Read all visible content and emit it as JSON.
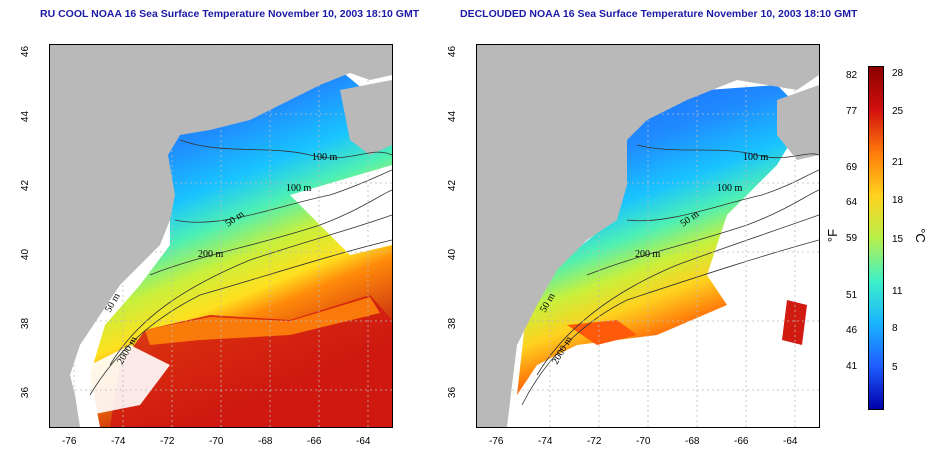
{
  "left_map": {
    "title": "RU COOL NOAA 16 Sea Surface Temperature November 10, 2003 18:10 GMT"
  },
  "right_map": {
    "title": "DECLOUDED NOAA 16 Sea Surface Temperature November 10, 2003 18:10 GMT"
  },
  "axes": {
    "lat_ticks": [
      "46",
      "44",
      "42",
      "40",
      "38",
      "36"
    ],
    "lon_ticks": [
      "-76",
      "-74",
      "-72",
      "-70",
      "-68",
      "-66",
      "-64"
    ]
  },
  "isobaths": [
    "100 m",
    "100 m",
    "50 m",
    "200 m",
    "50 m",
    "2000 m"
  ],
  "colorbar": {
    "fahrenheit_label": "°F",
    "celsius_label": "°C",
    "fahrenheit_ticks": [
      "82",
      "77",
      "69",
      "64",
      "59",
      "51",
      "46",
      "41"
    ],
    "celsius_ticks": [
      "28",
      "25",
      "21",
      "18",
      "15",
      "11",
      "8",
      "5"
    ],
    "colors": [
      "#0000a8",
      "#1f5cff",
      "#19b4ff",
      "#3ff0c8",
      "#b9f04a",
      "#ffd21f",
      "#ff7a0a",
      "#d21010",
      "#8b0000"
    ]
  },
  "colors": {
    "land": "#b9b9b9",
    "no_data": "#ffffff",
    "title": "#1a1aa6"
  }
}
